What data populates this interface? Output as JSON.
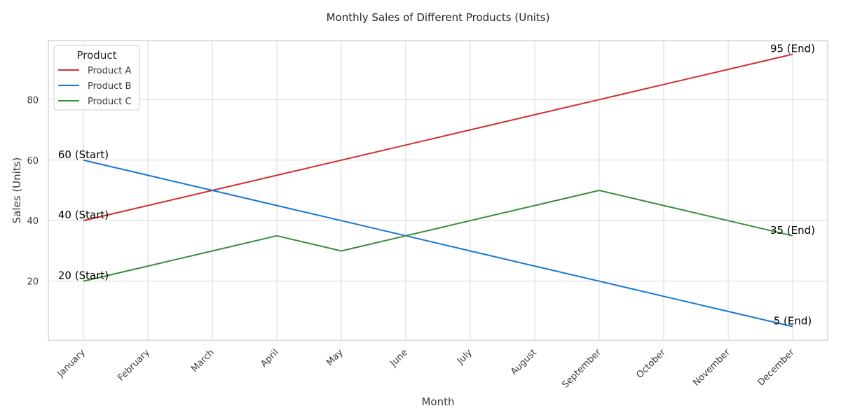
{
  "chart_data": {
    "type": "line",
    "title": "Monthly Sales of Different Products (Units)",
    "xlabel": "Month",
    "ylabel": "Sales (Units)",
    "categories": [
      "January",
      "February",
      "March",
      "April",
      "May",
      "June",
      "July",
      "August",
      "September",
      "October",
      "November",
      "December"
    ],
    "yticks": [
      20,
      40,
      60,
      80
    ],
    "ylim": [
      0.5,
      99.5
    ],
    "grid": true,
    "legend": {
      "title": "Product",
      "placement": "top-left"
    },
    "series": [
      {
        "name": "Product A",
        "color": "#d32f2f",
        "values": [
          40,
          45,
          50,
          55,
          60,
          65,
          70,
          75,
          80,
          85,
          90,
          95
        ]
      },
      {
        "name": "Product B",
        "color": "#1976d2",
        "values": [
          60,
          55,
          50,
          45,
          40,
          35,
          30,
          25,
          20,
          15,
          10,
          5
        ]
      },
      {
        "name": "Product C",
        "color": "#388e3c",
        "values": [
          20,
          25,
          30,
          35,
          30,
          35,
          40,
          45,
          50,
          45,
          40,
          35
        ]
      }
    ],
    "annotations": [
      {
        "series": 0,
        "index": 0,
        "text": "40 (Start)"
      },
      {
        "series": 1,
        "index": 0,
        "text": "60 (Start)"
      },
      {
        "series": 2,
        "index": 0,
        "text": "20 (Start)"
      },
      {
        "series": 0,
        "index": 11,
        "text": "95 (End)"
      },
      {
        "series": 1,
        "index": 11,
        "text": "5 (End)"
      },
      {
        "series": 2,
        "index": 11,
        "text": "35 (End)"
      }
    ]
  }
}
